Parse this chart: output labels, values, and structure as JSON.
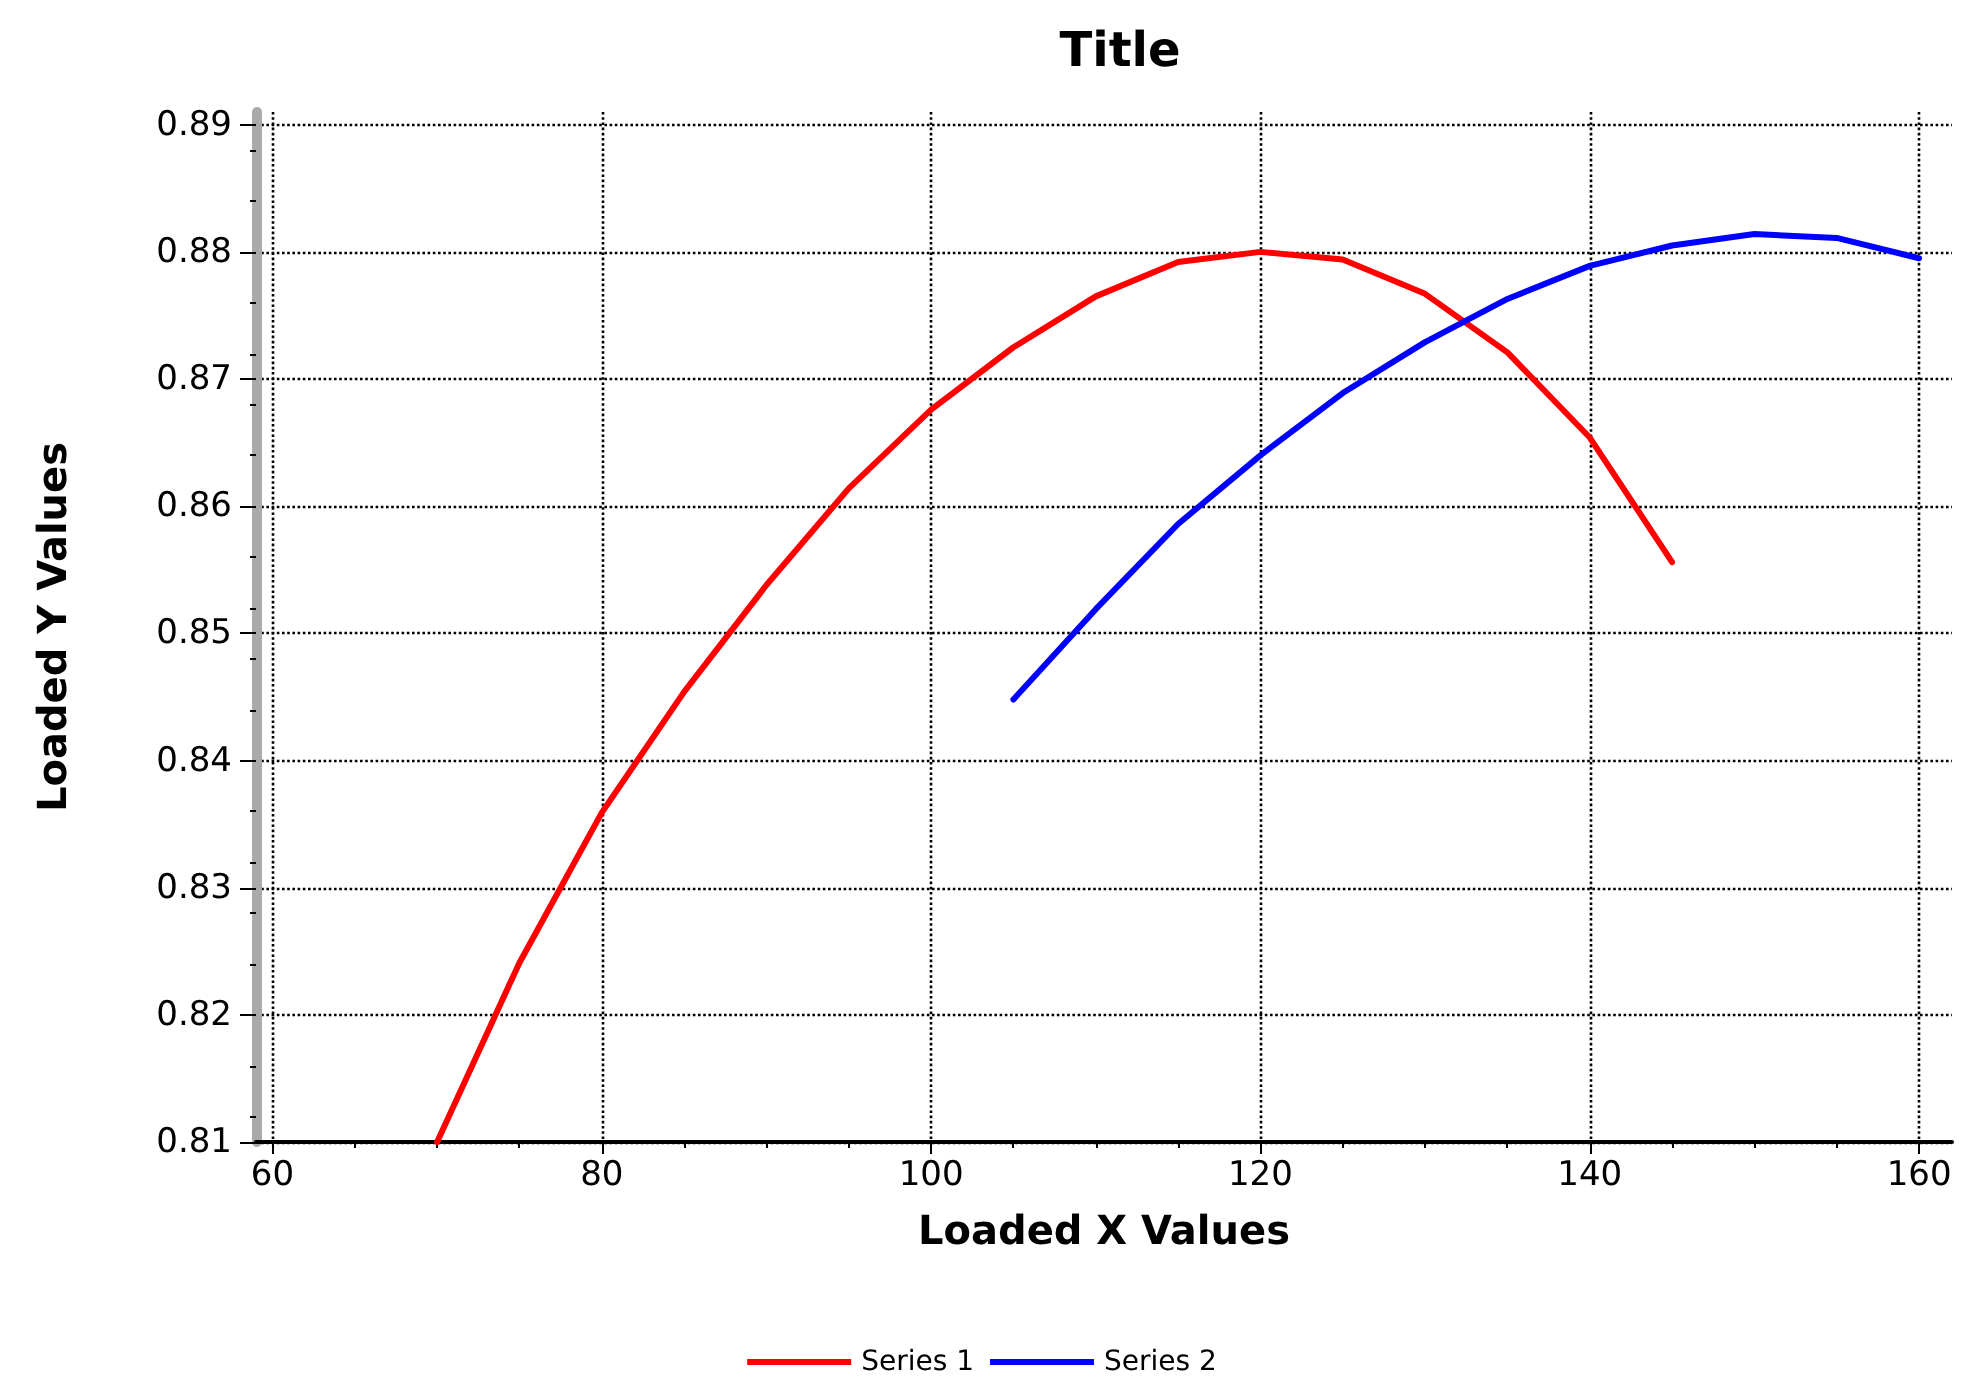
{
  "chart_data": {
    "type": "line",
    "title": "Title",
    "xlabel": "Loaded X Values",
    "ylabel": "Loaded Y Values",
    "xlim": [
      59,
      162
    ],
    "xticks": [
      60,
      80,
      100,
      120,
      140,
      160
    ],
    "ylim": [
      0.81,
      0.891
    ],
    "yticks": [
      0.81,
      0.82,
      0.83,
      0.84,
      0.85,
      0.86,
      0.87,
      0.88,
      0.89
    ],
    "grid": true,
    "legend": "bottom",
    "marker": "none",
    "line_style": "solid",
    "series": [
      {
        "name": "Series 1",
        "color": "#ff0000",
        "x": [
          70,
          75,
          80,
          85,
          90,
          95,
          100,
          105,
          110,
          115,
          120,
          125,
          130,
          135,
          140,
          145
        ],
        "values": [
          0.81,
          0.8241,
          0.8359,
          0.8454,
          0.8538,
          0.8614,
          0.8676,
          0.8725,
          0.8765,
          0.8792,
          0.88,
          0.8794,
          0.8767,
          0.8721,
          0.8654,
          0.8556
        ]
      },
      {
        "name": "Series 2",
        "color": "#0000ff",
        "x": [
          105,
          110,
          115,
          120,
          125,
          130,
          135,
          140,
          145,
          150,
          155,
          160
        ],
        "values": [
          0.8448,
          0.8519,
          0.8586,
          0.864,
          0.8689,
          0.8729,
          0.8763,
          0.8789,
          0.8805,
          0.8814,
          0.8811,
          0.8795
        ]
      }
    ]
  }
}
